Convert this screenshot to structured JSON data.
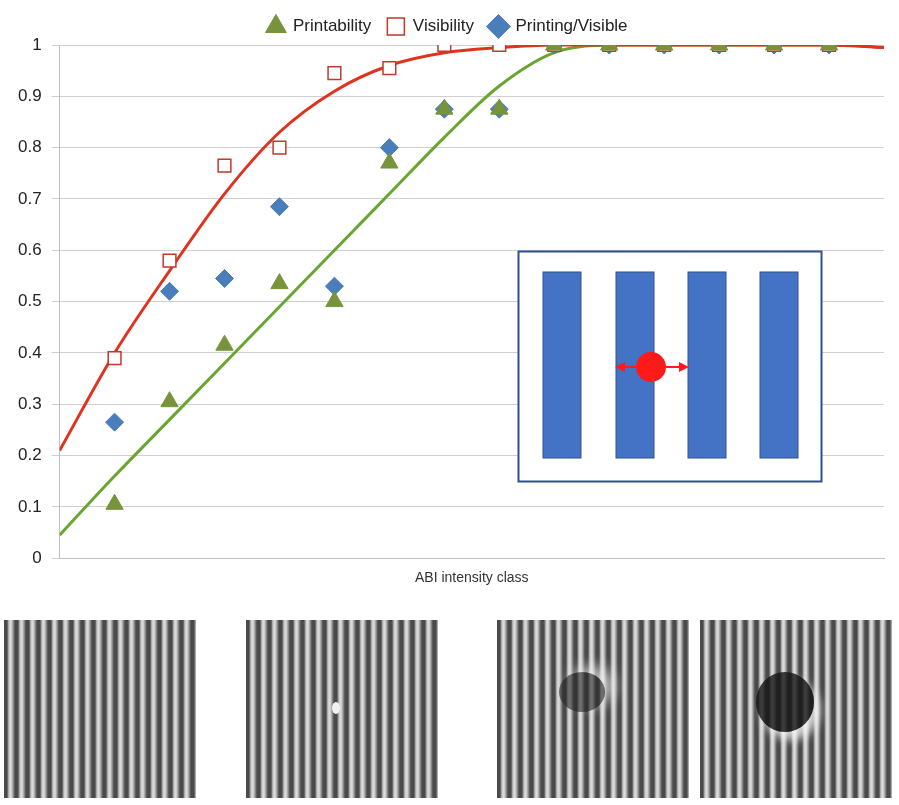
{
  "chart_data": {
    "type": "scatter",
    "x_label": "ABI intensity class",
    "x": [
      1,
      2,
      3,
      4,
      5,
      6,
      7,
      8,
      9,
      10,
      11,
      12,
      13,
      14
    ],
    "xlim": [
      0,
      15
    ],
    "ylim": [
      0,
      1
    ],
    "yticks": [
      0,
      0.1,
      0.2,
      0.3,
      0.4,
      0.5,
      0.6,
      0.7,
      0.8,
      0.9,
      1
    ],
    "grid": true,
    "tick_labels": "y",
    "legend": "top",
    "series": [
      {
        "name": "Printability",
        "type": "scatter",
        "marker": "triangle",
        "color": "#77933c",
        "values": [
          0.105,
          0.305,
          0.415,
          0.535,
          0.5,
          0.77,
          0.875,
          0.875,
          1,
          1,
          1,
          1,
          1,
          1
        ]
      },
      {
        "name": "Visibility",
        "type": "scatter",
        "marker": "open_square",
        "color": "#c0392b",
        "values": [
          0.39,
          0.58,
          0.765,
          0.8,
          0.945,
          0.955,
          1,
          1,
          1,
          1,
          1,
          1,
          1,
          1
        ]
      },
      {
        "name": "Printing/Visible",
        "type": "scatter",
        "marker": "diamond",
        "color": "#4a7ebb",
        "values": [
          0.265,
          0.52,
          0.545,
          0.685,
          0.53,
          0.8,
          0.875,
          0.875,
          1,
          1,
          1,
          1,
          1,
          1
        ]
      },
      {
        "type": "line",
        "marker": "none",
        "line_style": "solid",
        "color": "#e0331f",
        "x": [
          0,
          1,
          2,
          3,
          4,
          5,
          6,
          7,
          8,
          9,
          10,
          11,
          12,
          13,
          14,
          15
        ],
        "values": [
          0.21,
          0.4,
          0.56,
          0.71,
          0.83,
          0.91,
          0.96,
          0.985,
          0.995,
          1,
          1,
          1,
          1,
          1,
          1,
          0.995
        ]
      },
      {
        "type": "line",
        "marker": "none",
        "line_style": "solid",
        "color": "#6aa531",
        "x": [
          0,
          1,
          2,
          3,
          4,
          5,
          6,
          7,
          8,
          9,
          10,
          11,
          12,
          13,
          14,
          15
        ],
        "values": [
          0.045,
          0.16,
          0.27,
          0.38,
          0.49,
          0.6,
          0.71,
          0.82,
          0.92,
          0.985,
          1,
          1,
          1,
          1,
          1,
          0.995
        ]
      }
    ]
  }
}
